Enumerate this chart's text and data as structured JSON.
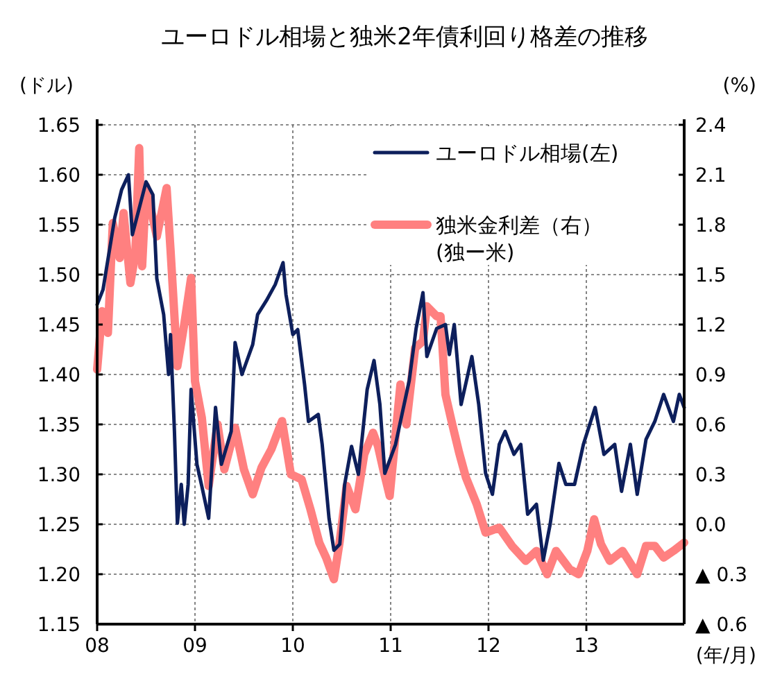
{
  "chart_data": {
    "type": "line",
    "title": "ユーロドル相場と独米2年債利回り格差の推移",
    "ylabel": "(ドル)",
    "y2label": "(%)",
    "xlabel": "(年/月)",
    "xlim": [
      2008,
      2014
    ],
    "xticks": [
      {
        "value": 2008,
        "label": "08"
      },
      {
        "value": 2009,
        "label": "09"
      },
      {
        "value": 2010,
        "label": "10"
      },
      {
        "value": 2011,
        "label": "11"
      },
      {
        "value": 2012,
        "label": "12"
      },
      {
        "value": 2013,
        "label": "13"
      }
    ],
    "ylim": [
      1.15,
      1.65
    ],
    "yticks": [
      1.15,
      {
        "value": 1.2,
        "label": "1.20"
      },
      1.25,
      {
        "value": 1.3,
        "label": "1.30"
      },
      1.35,
      {
        "value": 1.4,
        "label": "1.40"
      },
      1.45,
      {
        "value": 1.5,
        "label": "1.50"
      },
      1.55,
      {
        "value": 1.6,
        "label": "1.60"
      },
      1.65
    ],
    "y2lim": [
      -0.6,
      2.4
    ],
    "y2ticks": [
      {
        "value": -0.6,
        "label": "▲ 0.6"
      },
      {
        "value": -0.3,
        "label": "▲ 0.3"
      },
      {
        "value": 0,
        "label": "0.0"
      },
      0.3,
      0.6,
      0.9,
      1.2,
      1.5,
      1.8,
      2.1,
      2.4
    ],
    "grid": true,
    "legend": "top right",
    "marker": "none",
    "line_style": "solid",
    "series": [
      {
        "name": "独米金利差（右）\n(独ー米)",
        "color": "#ff8080",
        "axis": "y2",
        "x": [
          2008.0,
          2008.05,
          2008.11,
          2008.16,
          2008.23,
          2008.27,
          2008.34,
          2008.39,
          2008.43,
          2008.46,
          2008.5,
          2008.55,
          2008.61,
          2008.71,
          2008.75,
          2008.82,
          2008.89,
          2008.96,
          2009.0,
          2009.07,
          2009.14,
          2009.23,
          2009.3,
          2009.41,
          2009.5,
          2009.59,
          2009.68,
          2009.78,
          2009.89,
          2009.98,
          2010.09,
          2010.18,
          2010.27,
          2010.34,
          2010.42,
          2010.48,
          2010.55,
          2010.64,
          2010.73,
          2010.82,
          2010.87,
          2010.92,
          2010.99,
          2011.1,
          2011.16,
          2011.25,
          2011.33,
          2011.37,
          2011.47,
          2011.51,
          2011.56,
          2011.63,
          2011.7,
          2011.77,
          2011.88,
          2011.97,
          2012.11,
          2012.24,
          2012.38,
          2012.49,
          2012.6,
          2012.69,
          2012.83,
          2012.92,
          2013.01,
          2013.08,
          2013.15,
          2013.24,
          2013.37,
          2013.52,
          2013.61,
          2013.7,
          2013.79,
          2013.89,
          2014.0
        ],
        "values": [
          0.93,
          1.28,
          1.15,
          1.81,
          1.6,
          1.87,
          1.45,
          1.62,
          2.26,
          1.55,
          2.03,
          1.89,
          1.73,
          2.02,
          1.65,
          0.95,
          1.2,
          1.48,
          0.86,
          0.64,
          0.23,
          0.6,
          0.33,
          0.58,
          0.33,
          0.18,
          0.34,
          0.45,
          0.62,
          0.3,
          0.27,
          0.09,
          -0.11,
          -0.2,
          -0.33,
          -0.1,
          0.23,
          0.09,
          0.42,
          0.55,
          0.47,
          0.34,
          0.17,
          0.84,
          0.6,
          1.06,
          1.1,
          1.31,
          1.25,
          1.25,
          0.78,
          0.6,
          0.43,
          0.28,
          0.12,
          -0.05,
          -0.02,
          -0.13,
          -0.22,
          -0.16,
          -0.3,
          -0.16,
          -0.27,
          -0.3,
          -0.16,
          0.03,
          -0.12,
          -0.22,
          -0.16,
          -0.3,
          -0.13,
          -0.13,
          -0.2,
          -0.16,
          -0.11
        ]
      },
      {
        "name": "ユーロドル相場(左)",
        "color": "#0d1f5c",
        "x": [
          2008.0,
          2008.06,
          2008.18,
          2008.25,
          2008.32,
          2008.36,
          2008.5,
          2008.57,
          2008.61,
          2008.68,
          2008.73,
          2008.75,
          2008.79,
          2008.82,
          2008.86,
          2008.89,
          2008.93,
          2008.96,
          2009.02,
          2009.07,
          2009.14,
          2009.21,
          2009.27,
          2009.37,
          2009.41,
          2009.48,
          2009.59,
          2009.64,
          2009.73,
          2009.82,
          2009.9,
          2009.93,
          2010.0,
          2010.05,
          2010.12,
          2010.16,
          2010.26,
          2010.3,
          2010.37,
          2010.42,
          2010.48,
          2010.53,
          2010.6,
          2010.67,
          2010.76,
          2010.83,
          2010.89,
          2010.94,
          2011.05,
          2011.19,
          2011.26,
          2011.33,
          2011.37,
          2011.47,
          2011.56,
          2011.6,
          2011.65,
          2011.72,
          2011.83,
          2011.9,
          2011.97,
          2012.04,
          2012.11,
          2012.17,
          2012.26,
          2012.33,
          2012.4,
          2012.49,
          2012.56,
          2012.63,
          2012.72,
          2012.79,
          2012.88,
          2012.97,
          2013.09,
          2013.18,
          2013.29,
          2013.36,
          2013.45,
          2013.52,
          2013.61,
          2013.7,
          2013.79,
          2013.89,
          2013.95,
          2014.0
        ],
        "values": [
          1.47,
          1.485,
          1.557,
          1.585,
          1.6,
          1.54,
          1.593,
          1.58,
          1.496,
          1.46,
          1.4,
          1.44,
          1.343,
          1.251,
          1.29,
          1.25,
          1.29,
          1.385,
          1.31,
          1.288,
          1.256,
          1.367,
          1.31,
          1.343,
          1.432,
          1.4,
          1.43,
          1.46,
          1.474,
          1.49,
          1.512,
          1.48,
          1.44,
          1.445,
          1.39,
          1.353,
          1.36,
          1.33,
          1.256,
          1.224,
          1.23,
          1.29,
          1.328,
          1.3,
          1.385,
          1.414,
          1.37,
          1.301,
          1.33,
          1.394,
          1.446,
          1.482,
          1.418,
          1.446,
          1.45,
          1.42,
          1.45,
          1.37,
          1.418,
          1.37,
          1.301,
          1.28,
          1.33,
          1.343,
          1.32,
          1.33,
          1.26,
          1.27,
          1.214,
          1.25,
          1.311,
          1.29,
          1.29,
          1.33,
          1.367,
          1.32,
          1.33,
          1.283,
          1.33,
          1.28,
          1.335,
          1.353,
          1.38,
          1.353,
          1.38,
          1.367
        ]
      }
    ]
  }
}
